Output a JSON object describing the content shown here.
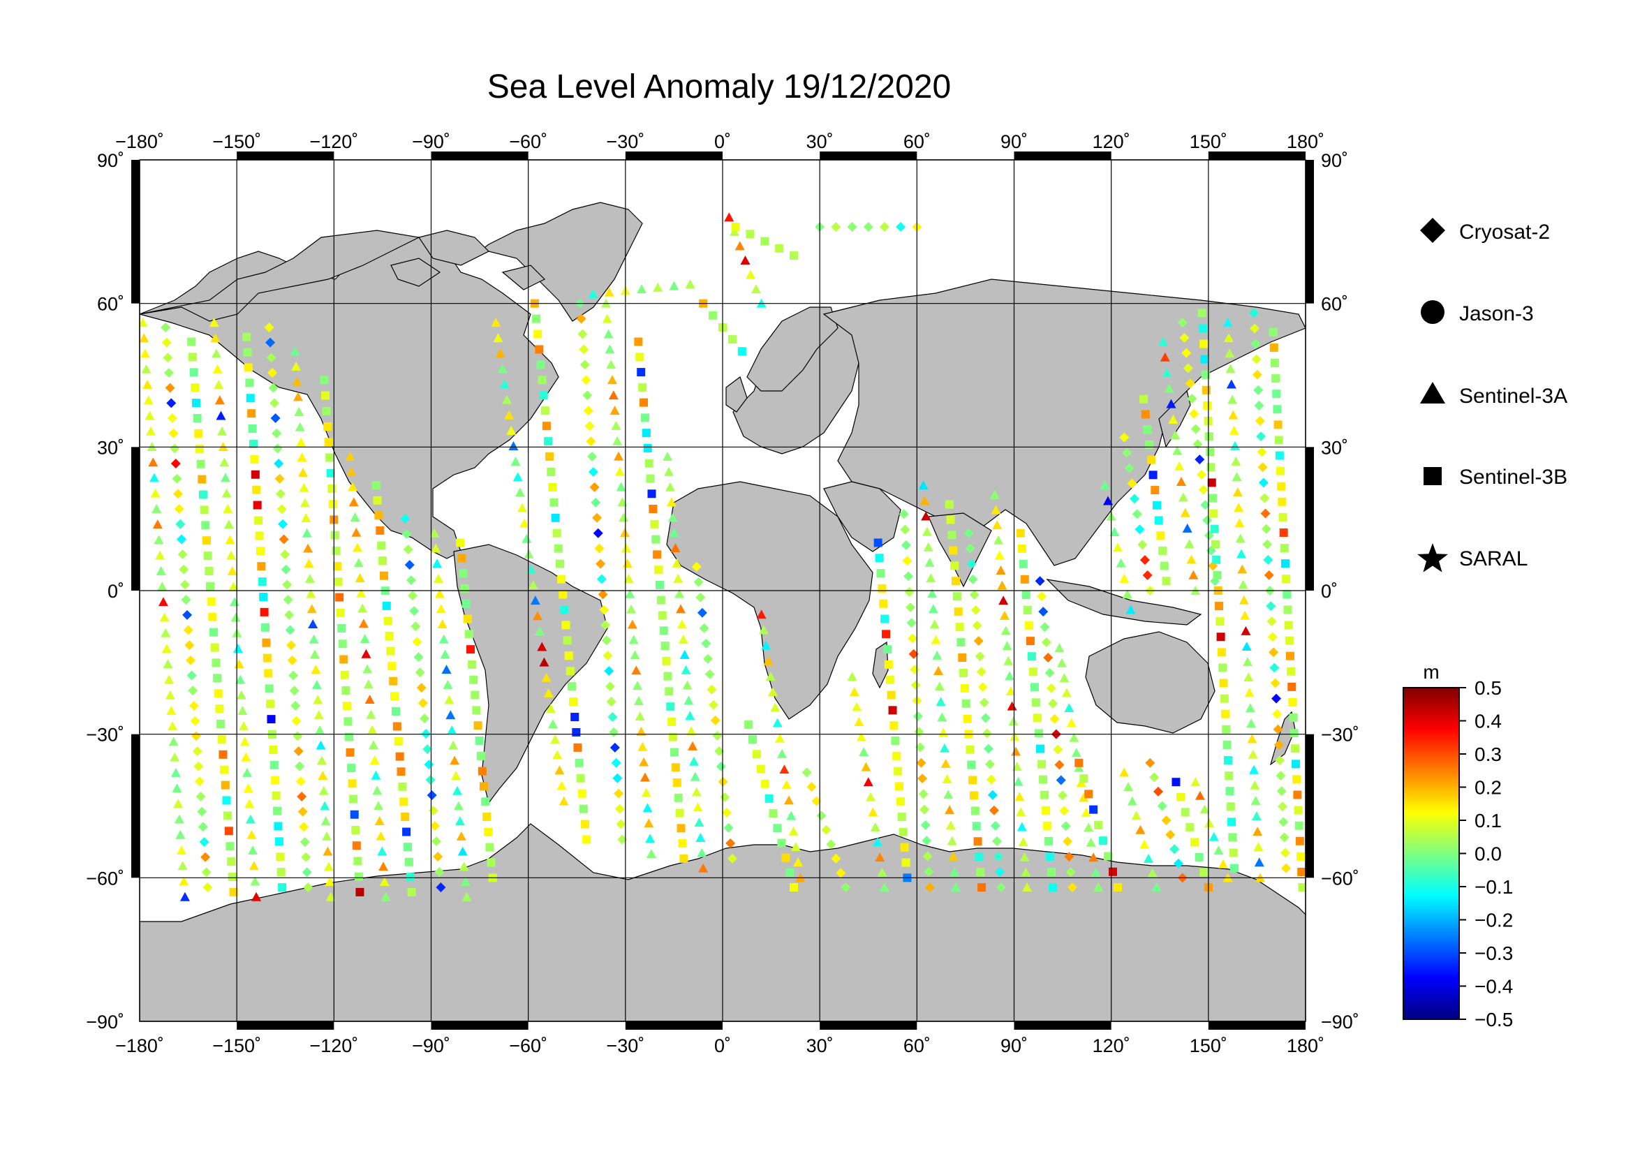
{
  "title": "Sea Level Anomaly 19/12/2020",
  "map": {
    "projection": "equirectangular",
    "lon_range": [
      -180,
      180
    ],
    "lat_range": [
      -90,
      90
    ],
    "graticule_step_deg": 30,
    "land_color": "#bebebe",
    "ocean_color": "#ffffff",
    "grid": true,
    "lon_ticks": [
      -180,
      -150,
      -120,
      -90,
      -60,
      -30,
      0,
      30,
      60,
      90,
      120,
      150,
      180
    ],
    "lat_ticks": [
      90,
      60,
      30,
      0,
      -30,
      -60,
      -90
    ],
    "lon_labels": [
      "−180˚",
      "−150˚",
      "−120˚",
      "−90˚",
      "−60˚",
      "−30˚",
      "0˚",
      "30˚",
      "60˚",
      "90˚",
      "120˚",
      "150˚",
      "180˚"
    ],
    "lat_labels": [
      "90˚",
      "60˚",
      "30˚",
      "0˚",
      "−30˚",
      "−60˚",
      "−90˚"
    ]
  },
  "legend": {
    "items": [
      {
        "name": "Cryosat-2",
        "marker": "diamond"
      },
      {
        "name": "Jason-3",
        "marker": "circle"
      },
      {
        "name": "Sentinel-3A",
        "marker": "triangle"
      },
      {
        "name": "Sentinel-3B",
        "marker": "square"
      },
      {
        "name": "SARAL",
        "marker": "star"
      }
    ]
  },
  "colorbar": {
    "unit": "m",
    "min": -0.5,
    "max": 0.5,
    "tick_labels": [
      "0.5",
      "0.4",
      "0.3",
      "0.2",
      "0.1",
      "0.0",
      "−0.1",
      "−0.2",
      "−0.3",
      "−0.4",
      "−0.5"
    ],
    "colormap": [
      "#00007f",
      "#0000ff",
      "#007fff",
      "#00ffff",
      "#7fff7f",
      "#ffff00",
      "#ff7f00",
      "#ff0000",
      "#7f0000"
    ]
  },
  "tracks": [
    {
      "marker": "triangle",
      "lon0": -179,
      "lat0": 56,
      "lon1": -166,
      "lat1": -64
    },
    {
      "marker": "diamond",
      "lon0": -172,
      "lat0": 55,
      "lon1": -159,
      "lat1": -62
    },
    {
      "marker": "square",
      "lon0": -164,
      "lat0": 52,
      "lon1": -151,
      "lat1": -63
    },
    {
      "marker": "triangle",
      "lon0": -157,
      "lat0": 56,
      "lon1": -144,
      "lat1": -64
    },
    {
      "marker": "square",
      "lon0": -147,
      "lat0": 53,
      "lon1": -136,
      "lat1": -62
    },
    {
      "marker": "diamond",
      "lon0": -140,
      "lat0": 55,
      "lon1": -128,
      "lat1": -62
    },
    {
      "marker": "triangle",
      "lon0": -132,
      "lat0": 50,
      "lon1": -121,
      "lat1": -64
    },
    {
      "marker": "square",
      "lon0": -123,
      "lat0": 44,
      "lon1": -112,
      "lat1": -63
    },
    {
      "marker": "triangle",
      "lon0": -115,
      "lat0": 28,
      "lon1": -104,
      "lat1": -64
    },
    {
      "marker": "square",
      "lon0": -107,
      "lat0": 22,
      "lon1": -96,
      "lat1": -63
    },
    {
      "marker": "diamond",
      "lon0": -98,
      "lat0": 15,
      "lon1": -87,
      "lat1": -62
    },
    {
      "marker": "triangle",
      "lon0": -89,
      "lat0": 12,
      "lon1": -79,
      "lat1": -64
    },
    {
      "marker": "square",
      "lon0": -81,
      "lat0": 10,
      "lon1": -71,
      "lat1": -60
    },
    {
      "marker": "triangle",
      "lon0": -70,
      "lat0": 56,
      "lon1": -49,
      "lat1": -44
    },
    {
      "marker": "square",
      "lon0": -58,
      "lat0": 60,
      "lon1": -42,
      "lat1": -52
    },
    {
      "marker": "diamond",
      "lon0": -44,
      "lat0": 60,
      "lon1": -31,
      "lat1": -52
    },
    {
      "marker": "triangle",
      "lon0": -36,
      "lat0": 60,
      "lon1": -22,
      "lat1": -55
    },
    {
      "marker": "square",
      "lon0": -26,
      "lat0": 52,
      "lon1": -12,
      "lat1": -56
    },
    {
      "marker": "triangle",
      "lon0": -17,
      "lat0": 28,
      "lon1": -6,
      "lat1": -58
    },
    {
      "marker": "diamond",
      "lon0": -8,
      "lat0": 5,
      "lon1": 3,
      "lat1": -56
    },
    {
      "marker": "triangle",
      "lon0": 2,
      "lat0": 78,
      "lon1": 12,
      "lat1": 60
    },
    {
      "marker": "square",
      "lon0": 8,
      "lat0": -28,
      "lon1": 22,
      "lat1": -62
    },
    {
      "marker": "triangle",
      "lon0": 12,
      "lat0": -5,
      "lon1": 24,
      "lat1": -60
    },
    {
      "marker": "diamond",
      "lon0": 26,
      "lat0": -38,
      "lon1": 38,
      "lat1": -62
    },
    {
      "marker": "triangle",
      "lon0": 40,
      "lat0": -18,
      "lon1": 50,
      "lat1": -62
    },
    {
      "marker": "square",
      "lon0": 48,
      "lat0": 10,
      "lon1": 57,
      "lat1": -60
    },
    {
      "marker": "diamond",
      "lon0": 56,
      "lat0": 16,
      "lon1": 64,
      "lat1": -62
    },
    {
      "marker": "triangle",
      "lon0": 62,
      "lat0": 22,
      "lon1": 72,
      "lat1": -62
    },
    {
      "marker": "square",
      "lon0": 70,
      "lat0": 18,
      "lon1": 80,
      "lat1": -62
    },
    {
      "marker": "diamond",
      "lon0": 76,
      "lat0": 12,
      "lon1": 86,
      "lat1": -62
    },
    {
      "marker": "triangle",
      "lon0": 84,
      "lat0": 20,
      "lon1": 94,
      "lat1": -62
    },
    {
      "marker": "square",
      "lon0": 92,
      "lat0": 12,
      "lon1": 102,
      "lat1": -62
    },
    {
      "marker": "diamond",
      "lon0": 98,
      "lat0": 2,
      "lon1": 108,
      "lat1": -62
    },
    {
      "marker": "triangle",
      "lon0": 104,
      "lat0": -12,
      "lon1": 116,
      "lat1": -62
    },
    {
      "marker": "square",
      "lon0": 110,
      "lat0": -36,
      "lon1": 122,
      "lat1": -62
    },
    {
      "marker": "triangle",
      "lon0": 118,
      "lat0": 22,
      "lon1": 126,
      "lat1": -4
    },
    {
      "marker": "diamond",
      "lon0": 124,
      "lat0": 32,
      "lon1": 132,
      "lat1": 0
    },
    {
      "marker": "square",
      "lon0": 130,
      "lat0": 40,
      "lon1": 137,
      "lat1": 2
    },
    {
      "marker": "triangle",
      "lon0": 136,
      "lat0": 52,
      "lon1": 146,
      "lat1": 0
    },
    {
      "marker": "diamond",
      "lon0": 142,
      "lat0": 56,
      "lon1": 152,
      "lat1": 2
    },
    {
      "marker": "square",
      "lon0": 148,
      "lat0": 58,
      "lon1": 158,
      "lat1": -58
    },
    {
      "marker": "triangle",
      "lon0": 156,
      "lat0": 56,
      "lon1": 166,
      "lat1": -60
    },
    {
      "marker": "diamond",
      "lon0": 164,
      "lat0": 58,
      "lon1": 174,
      "lat1": -58
    },
    {
      "marker": "square",
      "lon0": 170,
      "lat0": 54,
      "lon1": 179,
      "lat1": -62
    },
    {
      "marker": "triangle",
      "lon0": 124,
      "lat0": -38,
      "lon1": 134,
      "lat1": -62
    },
    {
      "marker": "diamond",
      "lon0": 132,
      "lat0": -36,
      "lon1": 142,
      "lat1": -60
    },
    {
      "marker": "square",
      "lon0": 140,
      "lat0": -40,
      "lon1": 150,
      "lat1": -62
    },
    {
      "marker": "triangle",
      "lon0": 146,
      "lat0": -40,
      "lon1": 156,
      "lat1": -60
    },
    {
      "marker": "square",
      "lon0": 4,
      "lat0": 76,
      "lon1": 22,
      "lat1": 70
    },
    {
      "marker": "diamond",
      "lon0": 30,
      "lat0": 76,
      "lon1": 60,
      "lat1": 76
    },
    {
      "marker": "triangle",
      "lon0": -40,
      "lat0": 62,
      "lon1": -10,
      "lat1": 64
    },
    {
      "marker": "square",
      "lon0": -6,
      "lat0": 60,
      "lon1": 6,
      "lat1": 50
    }
  ]
}
